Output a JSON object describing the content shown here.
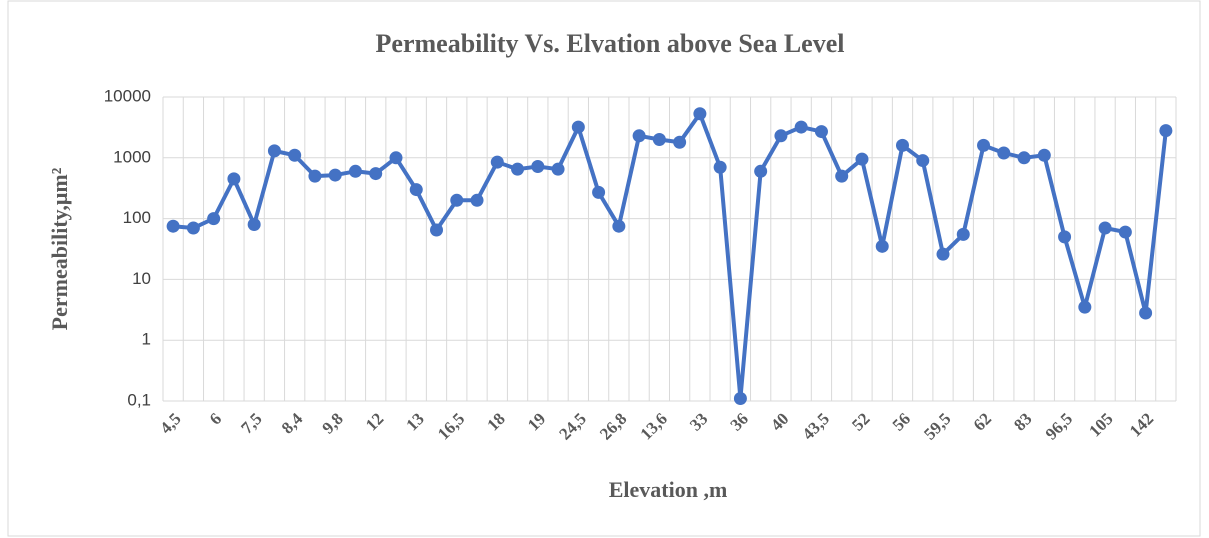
{
  "chart_data": {
    "type": "line",
    "title": "Permeability Vs. Elvation above Sea Level",
    "x_label": "Elevation ,m",
    "y_label": "Permeability,μm²",
    "categories": [
      "4,5",
      null,
      "6",
      null,
      "7,5",
      null,
      "8,4",
      null,
      "9,8",
      null,
      "12",
      null,
      "13",
      null,
      "16,5",
      null,
      "18",
      null,
      "19",
      null,
      "24,5",
      null,
      "26,8",
      null,
      "13,6",
      null,
      "33",
      null,
      "36",
      null,
      "40",
      null,
      "43,5",
      null,
      "52",
      null,
      "56",
      null,
      "59,5",
      null,
      "62",
      null,
      "83",
      null,
      "96,5",
      null,
      "105",
      null,
      "142",
      null
    ],
    "series": [
      {
        "name": "Permeability",
        "color": "#4472c4",
        "values": [
          75,
          70,
          100,
          450,
          80,
          1300,
          1100,
          500,
          520,
          600,
          550,
          1000,
          300,
          65,
          200,
          200,
          850,
          650,
          720,
          650,
          3200,
          270,
          75,
          2300,
          2000,
          1800,
          5300,
          700,
          0.11,
          600,
          2300,
          3200,
          2700,
          500,
          950,
          35,
          1600,
          900,
          26,
          55,
          1600,
          1200,
          1000,
          1100,
          50,
          3.5,
          70,
          60,
          2.8,
          2800
        ]
      }
    ],
    "ylim": [
      0.1,
      10000
    ],
    "log_y": true,
    "yticks": [
      {
        "value": 0.1,
        "label": "0,1"
      },
      1,
      10,
      100,
      1000,
      10000
    ],
    "grid": true
  }
}
